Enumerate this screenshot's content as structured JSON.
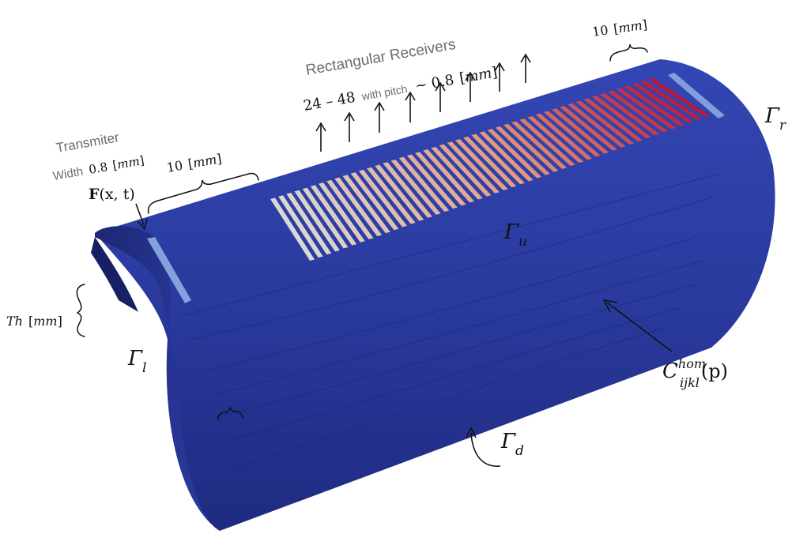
{
  "labels": {
    "receivers_title": "Rectangular Receivers",
    "receivers_count": "24 – 48",
    "receivers_with_pitch": "with pitch",
    "receivers_pitch_val": "~ 0.8",
    "mm": "mm",
    "pitch_top": "10",
    "transmitter_title": "Transmiter",
    "transmitter_width_word": "Width",
    "transmitter_width_val": "0.8",
    "force_F": "F",
    "force_args": "(x,  t)",
    "spacing_left": "10",
    "thickness": "Th",
    "gamma_l": "l",
    "gamma_r": "r",
    "gamma_u": "u",
    "gamma_d": "d",
    "gamma_symbol": "Γ",
    "stiffness_C": "C",
    "stiffness_sup": "hom",
    "stiffness_sub": "ijkl",
    "stiffness_arg": "(p)"
  },
  "colors": {
    "bone": "#2b3aa0",
    "bone_dark": "#1d2774",
    "transmitter": "#8aa8e0",
    "receiver_start": "#e4e2d6",
    "receiver_mid": "#eda079",
    "receiver_end": "#c41530"
  },
  "receiver_array": {
    "element_count": 48
  }
}
